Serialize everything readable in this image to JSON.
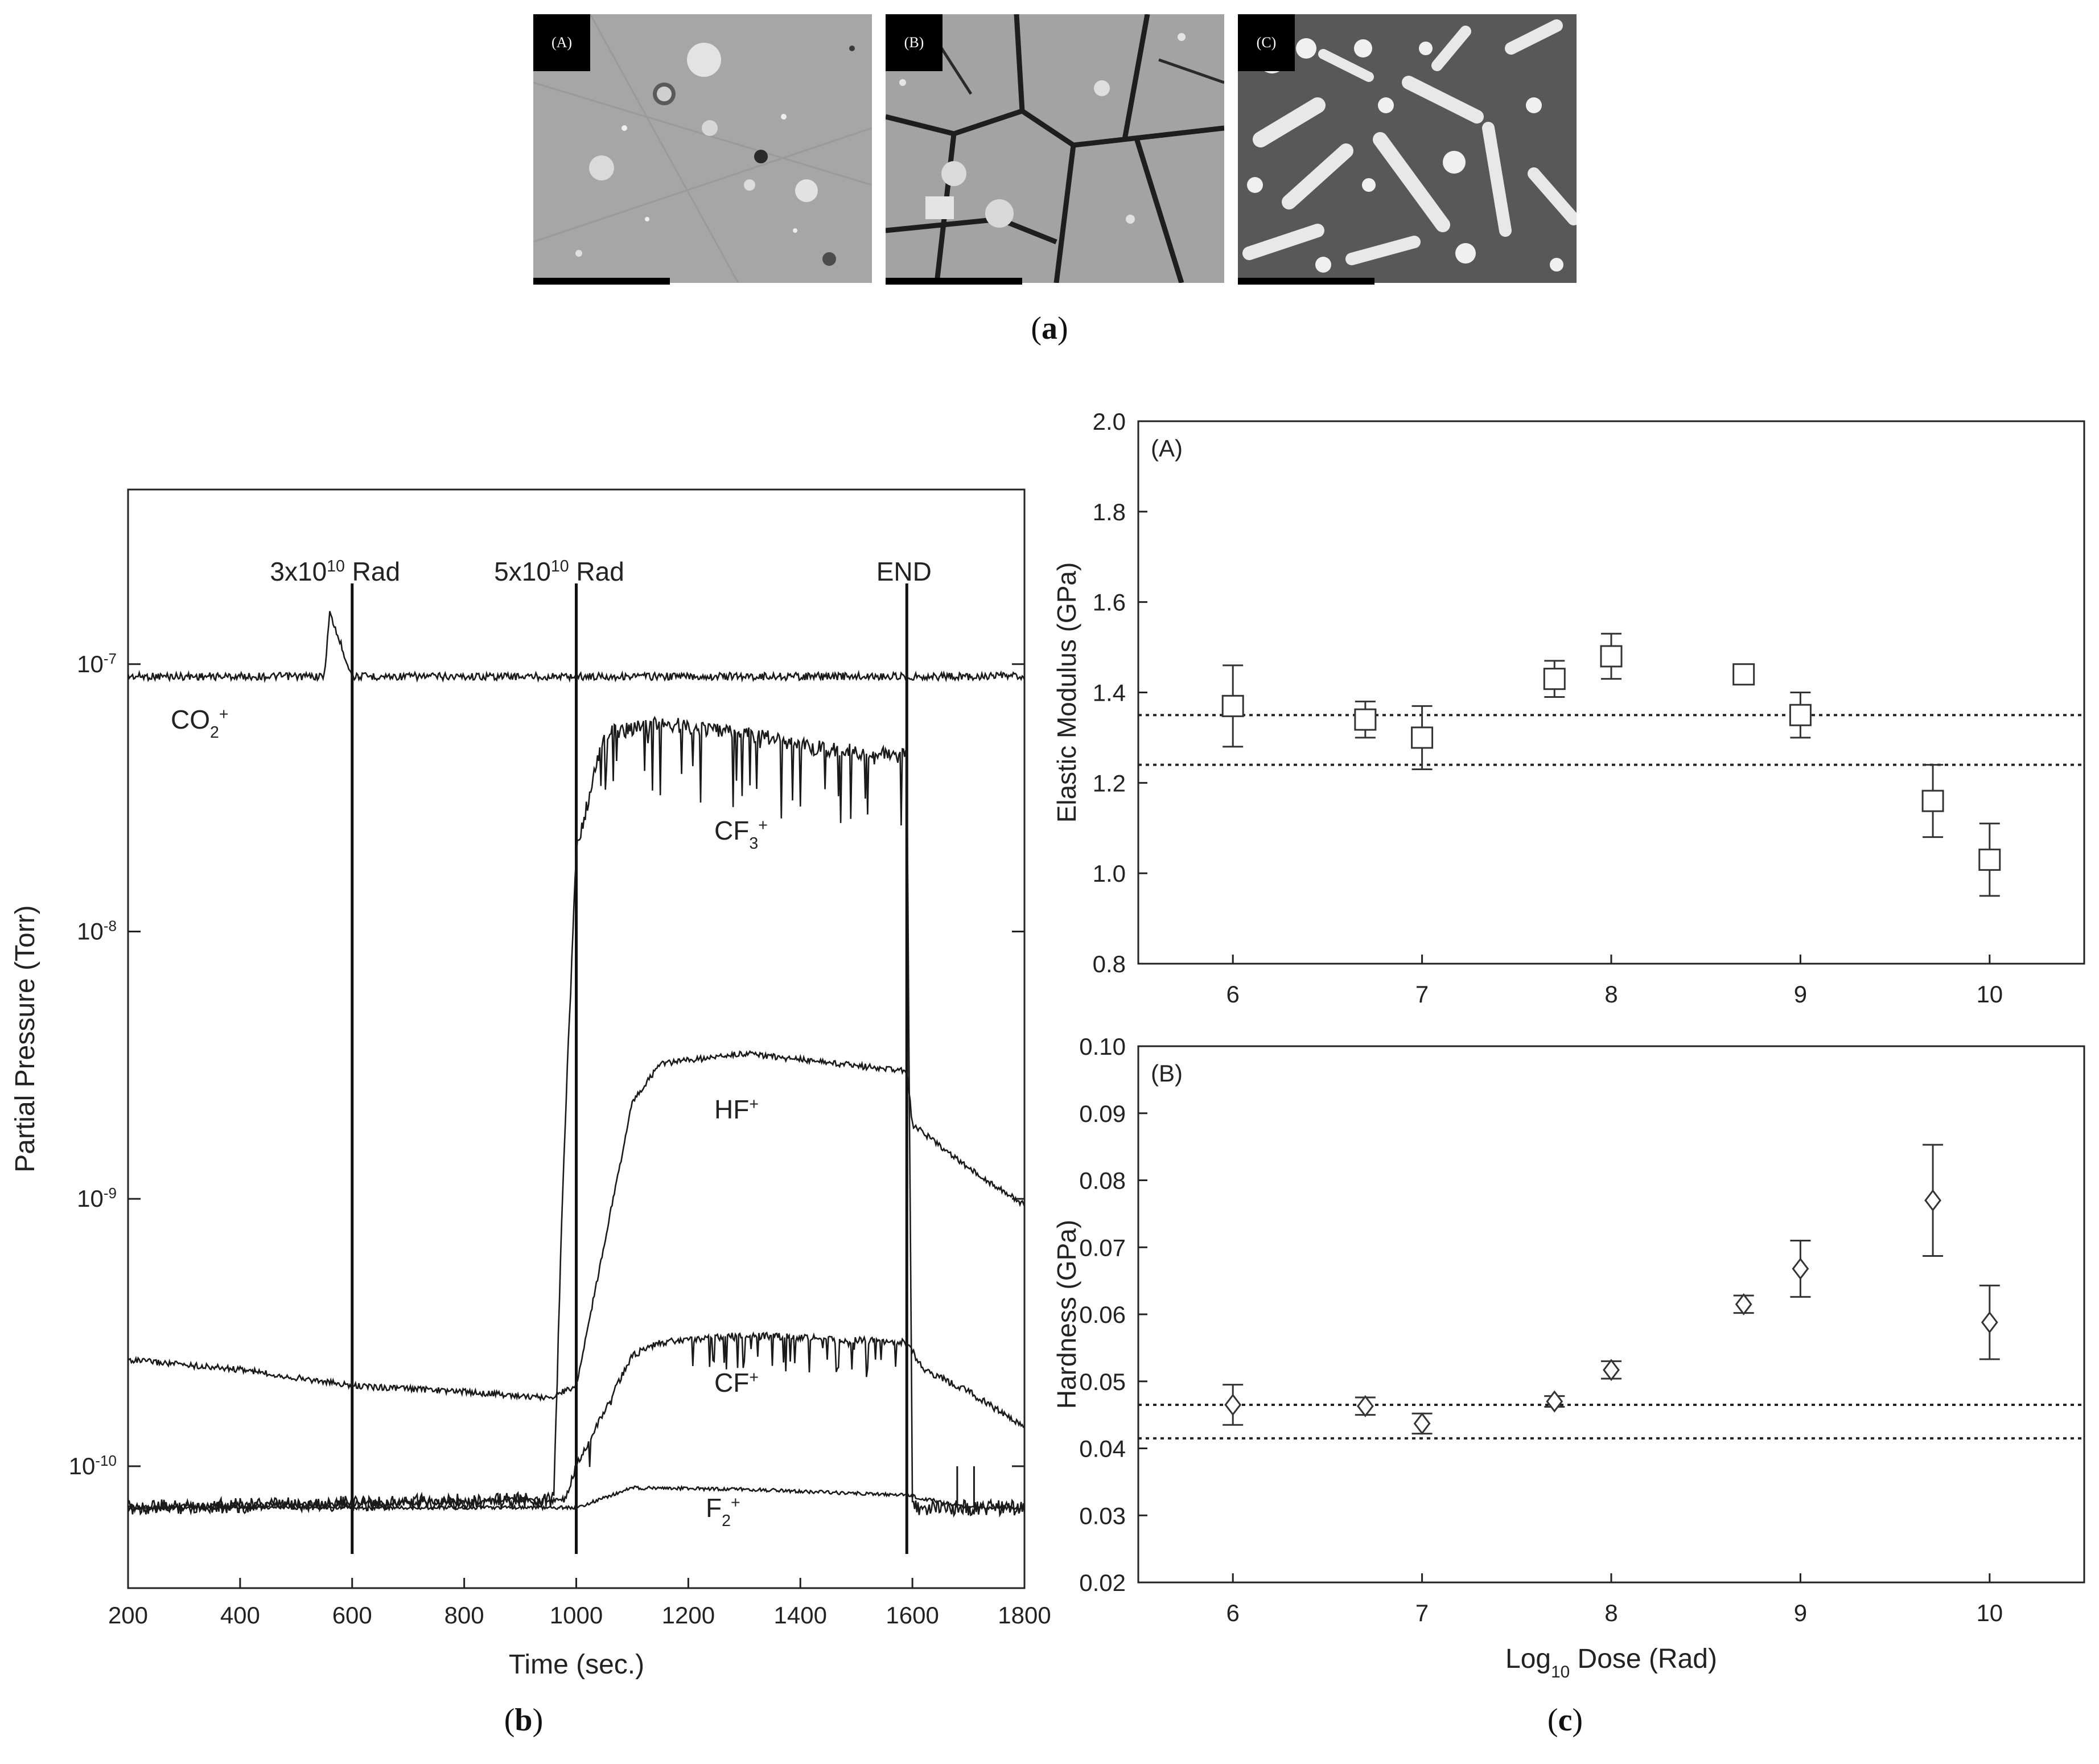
{
  "panel_a": {
    "images": [
      {
        "label": "(A)"
      },
      {
        "label": "(B)"
      },
      {
        "label": "(C)"
      }
    ],
    "caption_letter": "a"
  },
  "panel_b": {
    "caption_letter": "b",
    "markers": [
      {
        "label_base": "3x10",
        "label_sup": "10",
        "label_rest": " Rad"
      },
      {
        "label_base": "5x10",
        "label_sup": "10",
        "label_rest": " Rad"
      },
      {
        "label": "END"
      }
    ],
    "species": [
      {
        "base": "CO",
        "sub": "2",
        "sup": "+"
      },
      {
        "base": "CF",
        "sub": "3",
        "sup": "+"
      },
      {
        "base": "HF",
        "sub": "",
        "sup": "+"
      },
      {
        "base": "CF",
        "sub": "",
        "sup": "+"
      },
      {
        "base": "F",
        "sub": "2",
        "sup": "+"
      }
    ]
  },
  "panel_c": {
    "caption_letter": "c",
    "sub_labels": [
      "(A)",
      "(B)"
    ]
  },
  "chart_data": [
    {
      "type": "line",
      "id": "partial-pressure",
      "title": "",
      "xlabel": "Time (sec.)",
      "ylabel": "Partial Pressure (Torr)",
      "xlim": [
        200,
        1800
      ],
      "x_ticks": [
        200,
        400,
        600,
        800,
        1000,
        1200,
        1400,
        1600,
        1800
      ],
      "y_scale": "log",
      "ylim": [
        3.5e-11,
        4.5e-07
      ],
      "y_ticks": [
        {
          "value": 1e-07,
          "base": "10",
          "exp": "-7"
        },
        {
          "value": 1e-08,
          "base": "10",
          "exp": "-8"
        },
        {
          "value": 1e-09,
          "base": "10",
          "exp": "-9"
        },
        {
          "value": 1e-10,
          "base": "10",
          "exp": "-10"
        }
      ],
      "vertical_lines": [
        600,
        1000,
        1590
      ],
      "series": [
        {
          "name": "CO2+",
          "x": [
            200,
            550,
            560,
            600,
            1000,
            1600,
            1800
          ],
          "y": [
            9e-08,
            9e-08,
            1.55e-07,
            9e-08,
            9e-08,
            9e-08,
            9e-08
          ]
        },
        {
          "name": "CF3+",
          "x": [
            200,
            960,
            975,
            1000,
            1050,
            1150,
            1300,
            1450,
            1590,
            1600,
            1800
          ],
          "y": [
            7e-11,
            7.5e-11,
            1e-09,
            2e-08,
            5.5e-08,
            6e-08,
            5.5e-08,
            4.8e-08,
            4.5e-08,
            7e-11,
            7e-11
          ]
        },
        {
          "name": "HF+",
          "x": [
            200,
            400,
            600,
            800,
            950,
            1000,
            1100,
            1150,
            1300,
            1590,
            1600,
            1700,
            1800
          ],
          "y": [
            2.5e-10,
            2.3e-10,
            2e-10,
            1.9e-10,
            1.8e-10,
            2e-10,
            2.3e-09,
            3.2e-09,
            3.5e-09,
            3e-09,
            1.9e-09,
            1.3e-09,
            9.5e-10
          ]
        },
        {
          "name": "CF+",
          "x": [
            200,
            980,
            1000,
            1100,
            1150,
            1300,
            1590,
            1620,
            1700,
            1800
          ],
          "y": [
            7e-11,
            7.5e-11,
            1e-10,
            2.6e-10,
            2.9e-10,
            3.1e-10,
            2.9e-10,
            2.3e-10,
            1.9e-10,
            1.4e-10
          ]
        },
        {
          "name": "F2+",
          "x": [
            200,
            1000,
            1100,
            1300,
            1590,
            1700,
            1800
          ],
          "y": [
            7e-11,
            7e-11,
            8.3e-11,
            8.2e-11,
            7.8e-11,
            7e-11,
            7e-11
          ]
        }
      ]
    },
    {
      "type": "scatter",
      "id": "elastic-modulus",
      "title": "(A)",
      "xlabel": "",
      "ylabel": "Elastic Modulus (GPa)",
      "xlim": [
        5.5,
        10.5
      ],
      "x_ticks": [
        6,
        7,
        8,
        9,
        10
      ],
      "ylim": [
        0.8,
        2.0
      ],
      "y_ticks": [
        0.8,
        1.0,
        1.2,
        1.4,
        1.6,
        1.8,
        2.0
      ],
      "reference_lines": [
        1.35,
        1.24
      ],
      "marker": "square",
      "points": [
        {
          "x": 6.0,
          "y": 1.37,
          "err": 0.09
        },
        {
          "x": 6.7,
          "y": 1.34,
          "err": 0.04
        },
        {
          "x": 7.0,
          "y": 1.3,
          "err": 0.07
        },
        {
          "x": 7.7,
          "y": 1.43,
          "err": 0.04
        },
        {
          "x": 8.0,
          "y": 1.48,
          "err": 0.05
        },
        {
          "x": 8.7,
          "y": 1.44,
          "err": 0.02
        },
        {
          "x": 9.0,
          "y": 1.35,
          "err": 0.05
        },
        {
          "x": 9.7,
          "y": 1.16,
          "err": 0.08
        },
        {
          "x": 10.0,
          "y": 1.03,
          "err": 0.08
        }
      ]
    },
    {
      "type": "scatter",
      "id": "hardness",
      "title": "(B)",
      "xlabel_base": "Log",
      "xlabel_sub": "10",
      "xlabel_rest": " Dose (Rad)",
      "ylabel": "Hardness (GPa)",
      "xlim": [
        5.5,
        10.5
      ],
      "x_ticks": [
        6,
        7,
        8,
        9,
        10
      ],
      "ylim": [
        0.02,
        0.1
      ],
      "y_ticks": [
        "0.02",
        "0.03",
        "0.04",
        "0.05",
        "0.06",
        "0.07",
        "0.08",
        "0.09",
        "0.10"
      ],
      "reference_lines": [
        0.0465,
        0.0415
      ],
      "marker": "diamond",
      "points": [
        {
          "x": 6.0,
          "y": 0.0465,
          "err": 0.003
        },
        {
          "x": 6.7,
          "y": 0.0463,
          "err": 0.0013
        },
        {
          "x": 7.0,
          "y": 0.0437,
          "err": 0.0015
        },
        {
          "x": 7.7,
          "y": 0.047,
          "err": 0.0008
        },
        {
          "x": 8.0,
          "y": 0.0517,
          "err": 0.0013
        },
        {
          "x": 8.7,
          "y": 0.0615,
          "err": 0.0013
        },
        {
          "x": 9.0,
          "y": 0.0668,
          "err": 0.0042
        },
        {
          "x": 9.7,
          "y": 0.077,
          "err": 0.0083
        },
        {
          "x": 10.0,
          "y": 0.0588,
          "err": 0.0055
        }
      ]
    }
  ]
}
